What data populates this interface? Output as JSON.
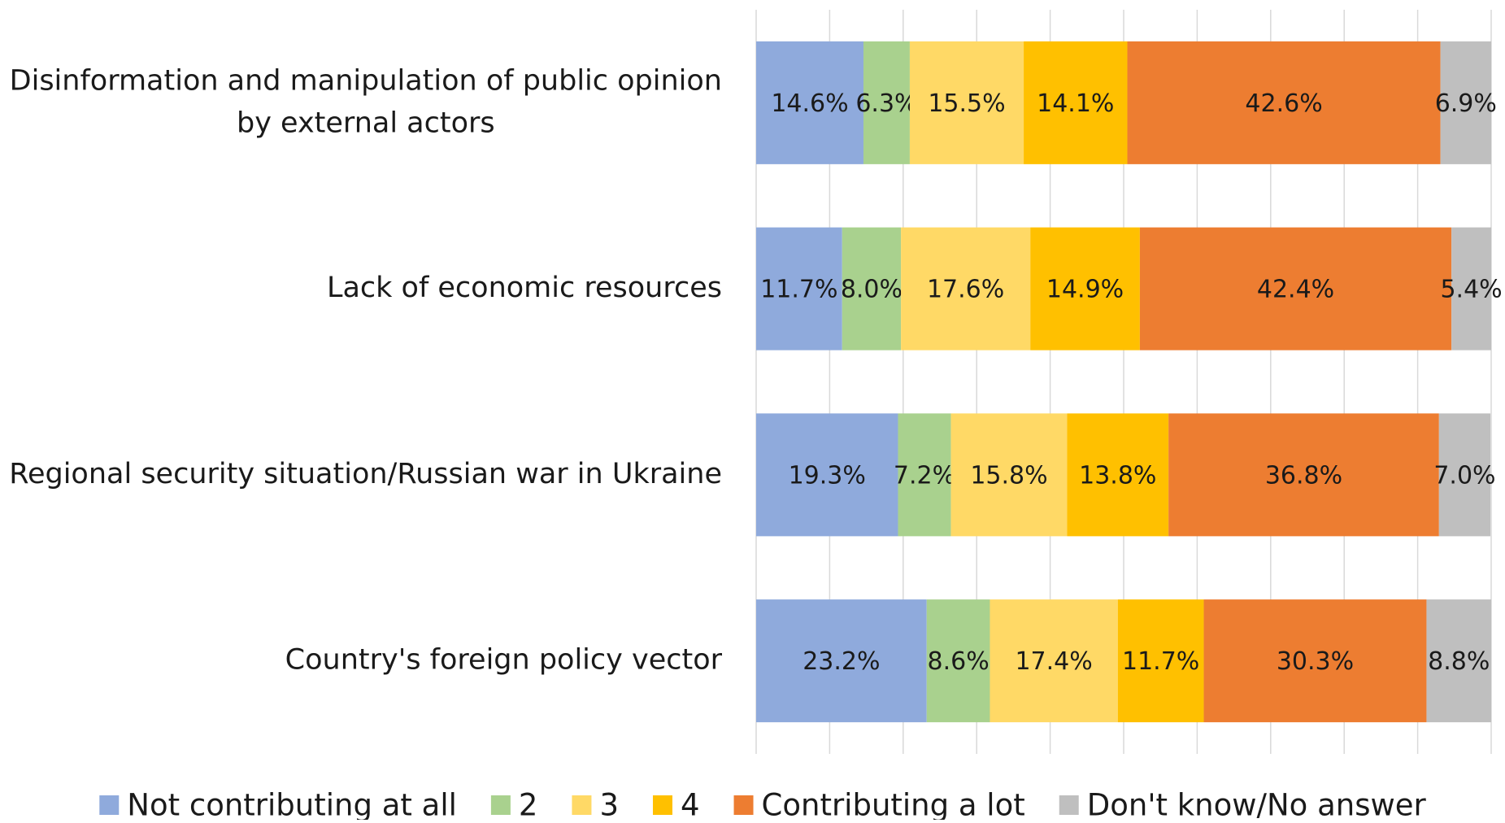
{
  "chart_data": {
    "type": "stacked_barh",
    "categories": [
      "Disinformation and manipulation of public opinion by external actors",
      "Lack of economic resources",
      "Regional security situation/Russian war in Ukraine",
      "Country's foreign policy vector"
    ],
    "series": [
      {
        "name": "Not contributing at all",
        "color": "#8faadc",
        "values": [
          14.6,
          11.7,
          19.3,
          23.2
        ],
        "value_labels": [
          "14.6%",
          "11.7%",
          "19.3%",
          "23.2%"
        ]
      },
      {
        "name": "2",
        "color": "#a9d18e",
        "values": [
          6.3,
          8.0,
          7.2,
          8.6
        ],
        "value_labels": [
          "6.3%",
          "8.0%",
          "7.2%",
          "8.6%"
        ]
      },
      {
        "name": "3",
        "color": "#ffd966",
        "values": [
          15.5,
          17.6,
          15.8,
          17.4
        ],
        "value_labels": [
          "15.5%",
          "17.6%",
          "15.8%",
          "17.4%"
        ]
      },
      {
        "name": "4",
        "color": "#ffc000",
        "values": [
          14.1,
          14.9,
          13.8,
          11.7
        ],
        "value_labels": [
          "14.1%",
          "14.9%",
          "13.8%",
          "11.7%"
        ]
      },
      {
        "name": "Contributing a lot",
        "color": "#ed7d31",
        "values": [
          42.6,
          42.4,
          36.8,
          30.3
        ],
        "value_labels": [
          "42.6%",
          "42.4%",
          "36.8%",
          "30.3%"
        ]
      },
      {
        "name": "Don't know/No answer",
        "color": "#bfbfbf",
        "values": [
          6.9,
          5.4,
          7.0,
          8.8
        ],
        "value_labels": [
          "6.9%",
          "5.4%",
          "7.0%",
          "8.8%"
        ]
      }
    ],
    "xlim": [
      0,
      100
    ],
    "xticks": [
      0,
      10,
      20,
      30,
      40,
      50,
      60,
      70,
      80,
      90,
      100
    ],
    "grid": true,
    "legend": "bottom"
  }
}
